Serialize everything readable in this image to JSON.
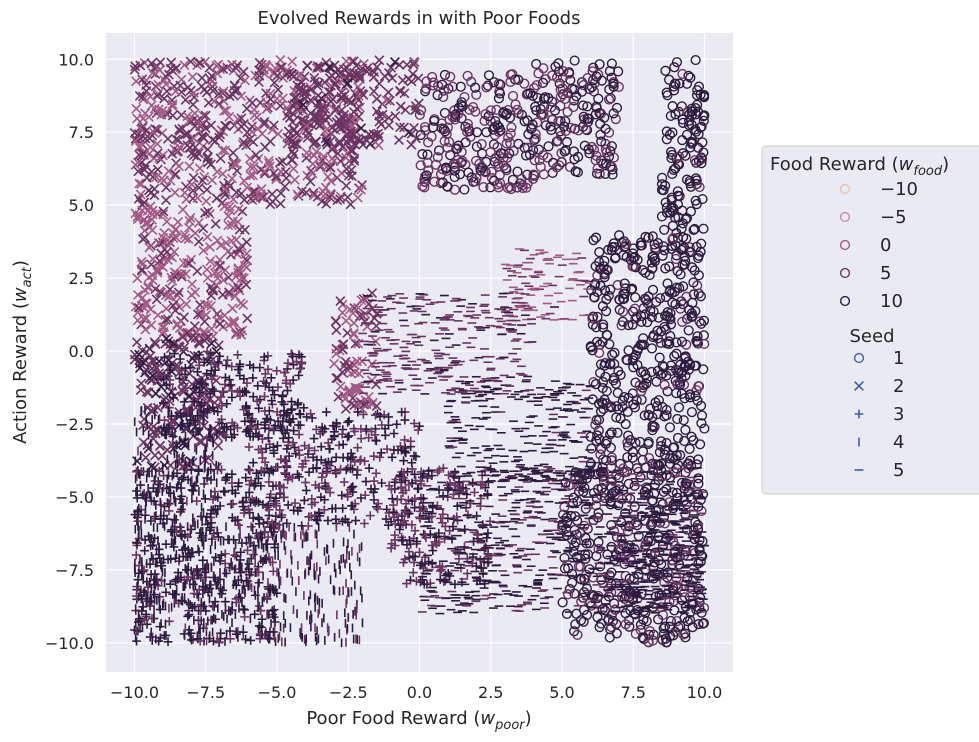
{
  "chart_data": {
    "type": "scatter",
    "title": "Evolved Rewards in with Poor Foods",
    "xlabel": {
      "base": "Poor Food Reward (",
      "var": "w",
      "sub": "poor",
      "close": ")"
    },
    "ylabel": {
      "base": "Action Reward (",
      "var": "w",
      "sub": "act",
      "close": ")"
    },
    "xlim": [
      -11.0,
      11.0
    ],
    "ylim": [
      -11.0,
      10.9
    ],
    "xticks": [
      -10.0,
      -7.5,
      -5.0,
      -2.5,
      0.0,
      2.5,
      5.0,
      7.5,
      10.0
    ],
    "yticks": [
      -10.0,
      -7.5,
      -5.0,
      -2.5,
      0.0,
      2.5,
      5.0,
      7.5,
      10.0
    ],
    "xtick_labels": [
      "−10.0",
      "−7.5",
      "−5.0",
      "−2.5",
      "0.0",
      "2.5",
      "5.0",
      "7.5",
      "10.0"
    ],
    "ytick_labels": [
      "−10.0",
      "−7.5",
      "−5.0",
      "−2.5",
      "0.0",
      "2.5",
      "5.0",
      "7.5",
      "10.0"
    ],
    "grid": true,
    "background": "#eaeaf2",
    "legend_position": "outside-right",
    "hue": {
      "title": {
        "base": "Food Reward (",
        "var": "w",
        "sub": "food",
        "close": ")"
      },
      "levels": [
        -10,
        -5,
        0,
        5,
        10
      ],
      "labels": [
        "−10",
        "−5",
        "0",
        "5",
        "10"
      ],
      "colors": [
        "#ebc4b4",
        "#d08e9a",
        "#a45a86",
        "#6c3462",
        "#2e1c40"
      ]
    },
    "style": {
      "title": "Seed",
      "levels": [
        1,
        2,
        3,
        4,
        5
      ],
      "labels": [
        "1",
        "2",
        "3",
        "4",
        "5"
      ],
      "markers": [
        "circle",
        "x",
        "plus",
        "vline",
        "hline"
      ],
      "legend_color": "#3b5fa8"
    },
    "series": [
      {
        "seed": 1,
        "marker": "circle",
        "regions": [
          {
            "x": [
              8.5,
              10.0
            ],
            "y": [
              4.0,
              10.0
            ],
            "food": 10
          },
          {
            "x": [
              4.0,
              7.0
            ],
            "y": [
              6.0,
              10.0
            ],
            "food": 8
          },
          {
            "x": [
              6.0,
              10.0
            ],
            "y": [
              -4.0,
              4.0
            ],
            "food": 10
          },
          {
            "x": [
              5.0,
              10.0
            ],
            "y": [
              -10.0,
              -4.0
            ],
            "food": 9
          },
          {
            "x": [
              0.0,
              4.0
            ],
            "y": [
              5.5,
              9.5
            ],
            "food": 7
          }
        ]
      },
      {
        "seed": 2,
        "marker": "x",
        "regions": [
          {
            "x": [
              -10.0,
              -2.0
            ],
            "y": [
              5.0,
              10.0
            ],
            "food": 3
          },
          {
            "x": [
              -10.0,
              -6.0
            ],
            "y": [
              0.5,
              5.0
            ],
            "food": 1
          },
          {
            "x": [
              -4.5,
              0.0
            ],
            "y": [
              7.0,
              10.0
            ],
            "food": 5
          },
          {
            "x": [
              -10.0,
              -7.0
            ],
            "y": [
              -4.0,
              0.5
            ],
            "food": 6
          },
          {
            "x": [
              -3.0,
              -1.5
            ],
            "y": [
              -2.0,
              2.0
            ],
            "food": 2
          }
        ]
      },
      {
        "seed": 3,
        "marker": "plus",
        "regions": [
          {
            "x": [
              -10.0,
              -5.0
            ],
            "y": [
              -10.0,
              -4.0
            ],
            "food": 9
          },
          {
            "x": [
              -6.0,
              0.0
            ],
            "y": [
              -6.0,
              -2.0
            ],
            "food": 8
          },
          {
            "x": [
              -1.0,
              2.5
            ],
            "y": [
              -8.0,
              -4.0
            ],
            "food": 7
          },
          {
            "x": [
              -9.0,
              -4.0
            ],
            "y": [
              -3.0,
              0.0
            ],
            "food": 9
          }
        ]
      },
      {
        "seed": 4,
        "marker": "vline",
        "regions": [
          {
            "x": [
              -10.0,
              -5.0
            ],
            "y": [
              -10.0,
              -6.0
            ],
            "food": 10
          },
          {
            "x": [
              -10.0,
              -7.0
            ],
            "y": [
              -6.0,
              -2.0
            ],
            "food": 10
          },
          {
            "x": [
              -5.0,
              -2.0
            ],
            "y": [
              -10.0,
              -6.0
            ],
            "food": 8
          }
        ]
      },
      {
        "seed": 5,
        "marker": "hline",
        "regions": [
          {
            "x": [
              1.0,
              6.0
            ],
            "y": [
              -4.5,
              -1.0
            ],
            "food": 10
          },
          {
            "x": [
              3.0,
              6.0
            ],
            "y": [
              1.0,
              3.5
            ],
            "food": 2
          },
          {
            "x": [
              0.0,
              10.0
            ],
            "y": [
              -9.0,
              -4.0
            ],
            "food": 9
          },
          {
            "x": [
              -2.0,
              4.0
            ],
            "y": [
              -1.5,
              2.0
            ],
            "food": 6
          },
          {
            "x": [
              7.0,
              10.0
            ],
            "y": [
              -9.0,
              -5.0
            ],
            "food": 10
          }
        ]
      }
    ]
  }
}
